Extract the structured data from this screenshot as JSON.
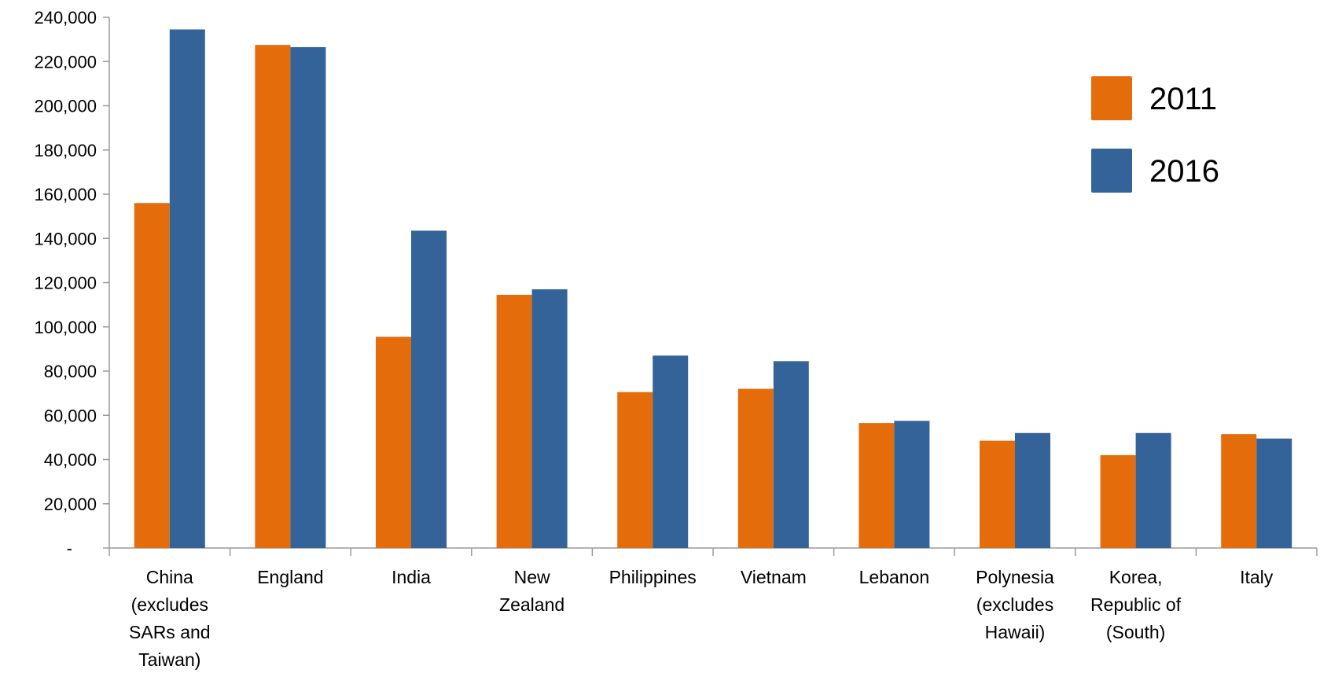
{
  "chart_data": {
    "type": "bar",
    "categories": [
      [
        "China",
        "(excludes",
        "SARs and",
        "Taiwan)"
      ],
      [
        "England"
      ],
      [
        "India"
      ],
      [
        "New",
        "Zealand"
      ],
      [
        "Philippines"
      ],
      [
        "Vietnam"
      ],
      [
        "Lebanon"
      ],
      [
        "Polynesia",
        "(excludes",
        "Hawaii)"
      ],
      [
        "Korea,",
        "Republic of",
        "(South)"
      ],
      [
        "Italy"
      ]
    ],
    "series": [
      {
        "name": "2011",
        "color": "#E46C0A",
        "values": [
          156000,
          227500,
          95500,
          114500,
          70500,
          72000,
          56500,
          48500,
          42000,
          51500
        ]
      },
      {
        "name": "2016",
        "color": "#336399",
        "values": [
          234500,
          226500,
          143500,
          117000,
          87000,
          84500,
          57500,
          52000,
          52000,
          49500
        ]
      }
    ],
    "ylim": [
      0,
      240000
    ],
    "yticks": [
      {
        "value": 0,
        "label": "-"
      },
      {
        "value": 20000,
        "label": "20,000"
      },
      {
        "value": 40000,
        "label": "40,000"
      },
      {
        "value": 60000,
        "label": "60,000"
      },
      {
        "value": 80000,
        "label": "80,000"
      },
      {
        "value": 100000,
        "label": "100,000"
      },
      {
        "value": 120000,
        "label": "120,000"
      },
      {
        "value": 140000,
        "label": "140,000"
      },
      {
        "value": 160000,
        "label": "160,000"
      },
      {
        "value": 180000,
        "label": "180,000"
      },
      {
        "value": 200000,
        "label": "200,000"
      },
      {
        "value": 220000,
        "label": "220,000"
      },
      {
        "value": 240000,
        "label": "240,000"
      }
    ],
    "title": "",
    "xlabel": "",
    "ylabel": "",
    "grid": false,
    "legend_position": "top-right"
  }
}
